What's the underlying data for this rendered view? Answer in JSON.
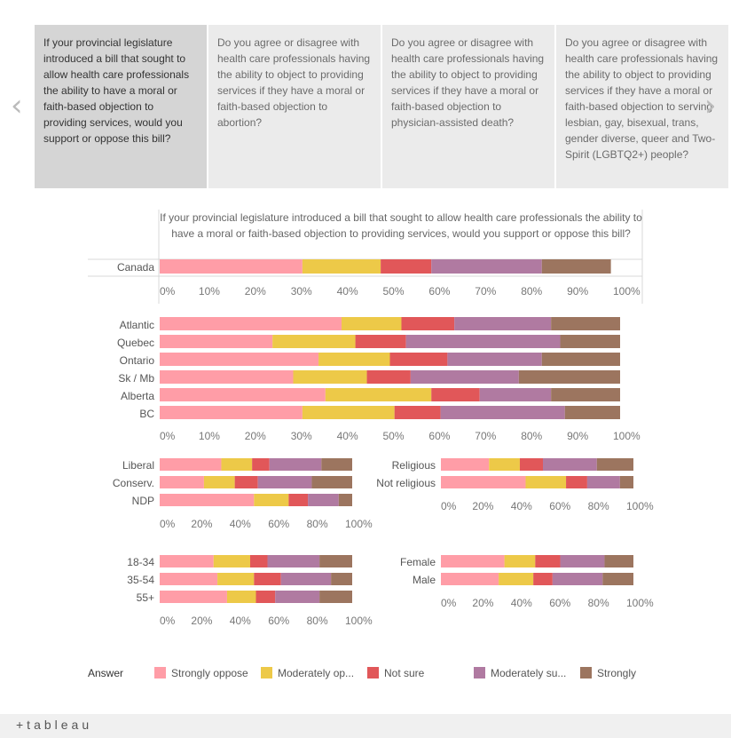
{
  "carousel": {
    "cards": [
      "If your provincial legislature introduced a bill that sought to allow health care professionals the ability to have a moral or faith-based objection to providing services, would you support or oppose this bill?",
      "Do you agree or disagree with health care professionals having the ability to object to providing services if they have a moral or faith-based objection to abortion?",
      "Do you agree or disagree with health care professionals having the ability to object to providing services if they have a moral or faith-based objection to physician-assisted death?",
      "Do you agree or disagree with health care professionals having the ability to object to providing services if they have a moral or faith-based objection to serving lesbian, gay, bisexual, trans, gender diverse, queer and Two-Spirit (LGBTQ2+) people?"
    ],
    "prev_icon": "chevron-left-icon",
    "next_icon": "chevron-right-icon"
  },
  "legend": {
    "title": "Answer",
    "items": [
      {
        "label": "Strongly oppose",
        "color": "#ff9da7"
      },
      {
        "label": "Moderately op...",
        "color": "#edc948"
      },
      {
        "label": "Not sure",
        "color": "#e15759"
      },
      {
        "label": "Moderately su...",
        "color": "#b07aa1"
      },
      {
        "label": "Strongly",
        "color": "#9c755f"
      }
    ]
  },
  "footer": {
    "logo": "+tableau"
  },
  "chart_data": [
    {
      "type": "bar",
      "stacked": true,
      "orientation": "horizontal",
      "title": "If your provincial legislature introduced a bill that sought to allow health care professionals the ability to have a moral or faith-based objection to providing services, would you support or oppose this bill?",
      "xlim": [
        0,
        100
      ],
      "ticks": [
        "0%",
        "10%",
        "20%",
        "30%",
        "40%",
        "50%",
        "60%",
        "70%",
        "80%",
        "90%",
        "100%"
      ],
      "categories": [
        "Canada"
      ],
      "series": [
        {
          "name": "Strongly oppose",
          "values": [
            31
          ]
        },
        {
          "name": "Moderately op...",
          "values": [
            17
          ]
        },
        {
          "name": "Not sure",
          "values": [
            11
          ]
        },
        {
          "name": "Moderately su...",
          "values": [
            24
          ]
        },
        {
          "name": "Strongly",
          "values": [
            15
          ]
        }
      ]
    },
    {
      "type": "bar",
      "stacked": true,
      "orientation": "horizontal",
      "xlim": [
        0,
        100
      ],
      "ticks": [
        "0%",
        "10%",
        "20%",
        "30%",
        "40%",
        "50%",
        "60%",
        "70%",
        "80%",
        "90%",
        "100%"
      ],
      "categories": [
        "Atlantic",
        "Quebec",
        "Ontario",
        "Sk / Mb",
        "Alberta",
        "BC"
      ],
      "series": [
        {
          "name": "Strongly oppose",
          "values": [
            39.5,
            24.5,
            34.5,
            29,
            36,
            31
          ]
        },
        {
          "name": "Moderately op...",
          "values": [
            13,
            18,
            15.5,
            16,
            23,
            20
          ]
        },
        {
          "name": "Not sure",
          "values": [
            11.5,
            11,
            12.5,
            9.5,
            10.5,
            10
          ]
        },
        {
          "name": "Moderately su...",
          "values": [
            21,
            33.5,
            20.5,
            23.5,
            15.5,
            27
          ]
        },
        {
          "name": "Strongly",
          "values": [
            15,
            13,
            17,
            22,
            15,
            12
          ]
        }
      ]
    },
    {
      "type": "bar",
      "stacked": true,
      "orientation": "horizontal",
      "xlim": [
        0,
        100
      ],
      "ticks": [
        "0%",
        "20%",
        "40%",
        "60%",
        "80%",
        "100%"
      ],
      "categories": [
        "Liberal",
        "Conserv.",
        "NDP"
      ],
      "series": [
        {
          "name": "Strongly oppose",
          "values": [
            32,
            23,
            49
          ]
        },
        {
          "name": "Moderately op...",
          "values": [
            16,
            16,
            18
          ]
        },
        {
          "name": "Not sure",
          "values": [
            9,
            12,
            10
          ]
        },
        {
          "name": "Moderately su...",
          "values": [
            27,
            28,
            16
          ]
        },
        {
          "name": "Strongly",
          "values": [
            16,
            21,
            7
          ]
        }
      ]
    },
    {
      "type": "bar",
      "stacked": true,
      "orientation": "horizontal",
      "xlim": [
        0,
        100
      ],
      "ticks": [
        "0%",
        "20%",
        "40%",
        "60%",
        "80%",
        "100%"
      ],
      "categories": [
        "Religious",
        "Not religious"
      ],
      "series": [
        {
          "name": "Strongly oppose",
          "values": [
            25,
            44
          ]
        },
        {
          "name": "Moderately op...",
          "values": [
            16,
            21
          ]
        },
        {
          "name": "Not sure",
          "values": [
            12,
            11
          ]
        },
        {
          "name": "Moderately su...",
          "values": [
            28,
            17
          ]
        },
        {
          "name": "Strongly",
          "values": [
            19,
            7
          ]
        }
      ]
    },
    {
      "type": "bar",
      "stacked": true,
      "orientation": "horizontal",
      "xlim": [
        0,
        100
      ],
      "ticks": [
        "0%",
        "20%",
        "40%",
        "60%",
        "80%",
        "100%"
      ],
      "categories": [
        "18-34",
        "35-54",
        "55+"
      ],
      "series": [
        {
          "name": "Strongly oppose",
          "values": [
            28,
            30,
            35
          ]
        },
        {
          "name": "Moderately op...",
          "values": [
            19,
            19,
            15
          ]
        },
        {
          "name": "Not sure",
          "values": [
            9,
            14,
            10
          ]
        },
        {
          "name": "Moderately su...",
          "values": [
            27,
            26,
            23
          ]
        },
        {
          "name": "Strongly",
          "values": [
            17,
            11,
            17
          ]
        }
      ]
    },
    {
      "type": "bar",
      "stacked": true,
      "orientation": "horizontal",
      "xlim": [
        0,
        100
      ],
      "ticks": [
        "0%",
        "20%",
        "40%",
        "60%",
        "80%",
        "100%"
      ],
      "categories": [
        "Female",
        "Male"
      ],
      "series": [
        {
          "name": "Strongly oppose",
          "values": [
            33,
            30
          ]
        },
        {
          "name": "Moderately op...",
          "values": [
            16,
            18
          ]
        },
        {
          "name": "Not sure",
          "values": [
            13,
            10
          ]
        },
        {
          "name": "Moderately su...",
          "values": [
            23,
            26
          ]
        },
        {
          "name": "Strongly",
          "values": [
            15,
            16
          ]
        }
      ]
    }
  ]
}
